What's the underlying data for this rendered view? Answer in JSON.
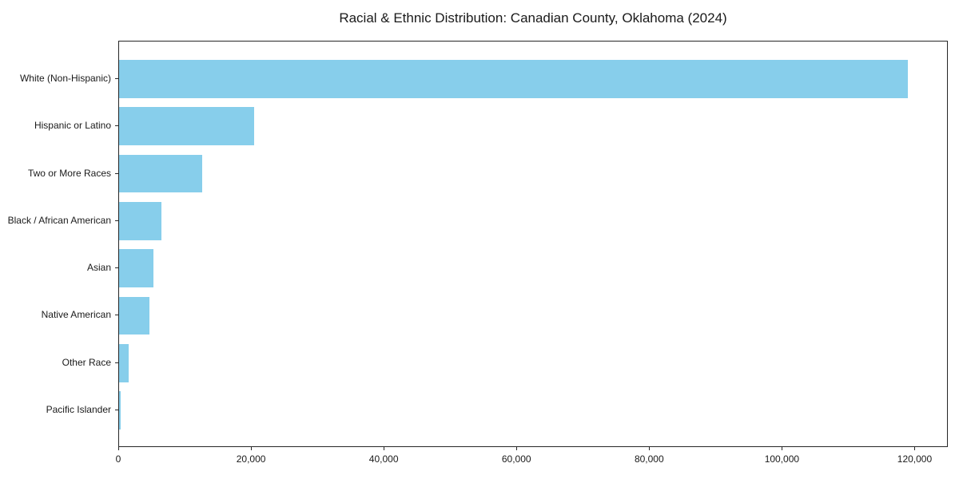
{
  "chart_data": {
    "type": "bar",
    "orientation": "horizontal",
    "title": "Racial & Ethnic Distribution: Canadian County, Oklahoma (2024)",
    "categories": [
      "White (Non-Hispanic)",
      "Hispanic or Latino",
      "Two or More Races",
      "Black / African American",
      "Asian",
      "Native American",
      "Other Race",
      "Pacific Islander"
    ],
    "values": [
      118900,
      20300,
      12500,
      6400,
      5200,
      4600,
      1450,
      250
    ],
    "xlabel": "",
    "ylabel": "",
    "xlim": [
      0,
      125000
    ],
    "xticks": {
      "values": [
        0,
        20000,
        40000,
        60000,
        80000,
        100000,
        120000
      ],
      "labels": [
        "0",
        "20,000",
        "40,000",
        "60,000",
        "80,000",
        "100,000",
        "120,000"
      ]
    },
    "grid": false,
    "legend": null,
    "bar_color": "#87CEEB",
    "text_color": "#1a1a1a",
    "axis_color": "#262626",
    "background": "#ffffff"
  }
}
